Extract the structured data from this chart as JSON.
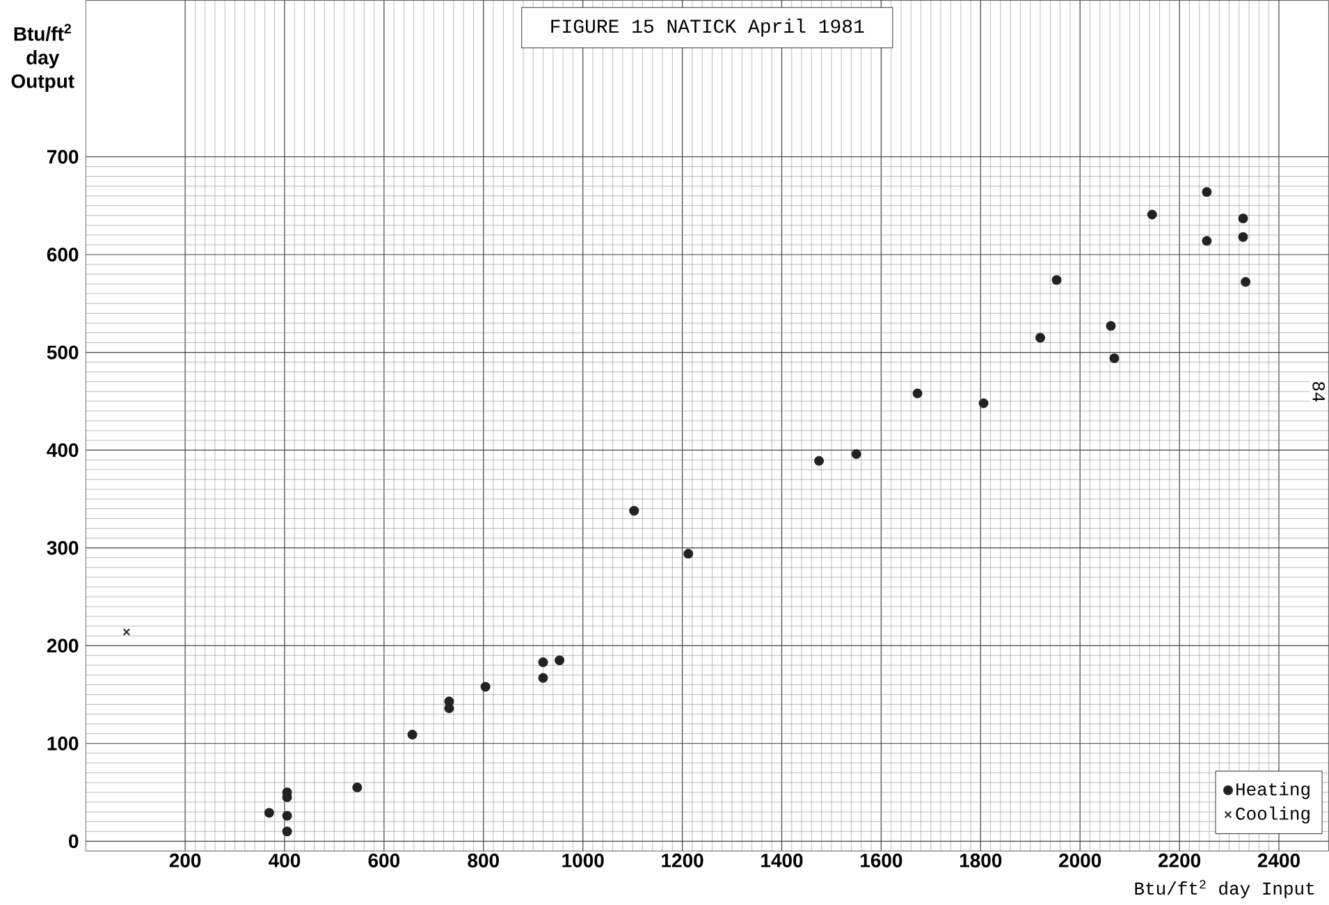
{
  "chart_data": {
    "type": "scatter",
    "title": "FIGURE 15  NATICK April 1981",
    "xlabel": "Btu/ft$^{2}$ day Input",
    "ylabel": "Btu/ft$^{2}$ day Output",
    "annotations": [
      "84"
    ],
    "xlim": [
      0,
      2500
    ],
    "ylim": [
      -10,
      860
    ],
    "xticks": [
      200,
      400,
      600,
      800,
      1000,
      1200,
      1400,
      1600,
      1800,
      2000,
      2200,
      2400
    ],
    "yticks": [
      0,
      100,
      200,
      300,
      400,
      500,
      600,
      700
    ],
    "grid": true,
    "legend": "bottom right",
    "series": [
      {
        "name": "Heating",
        "color": "#222222",
        "marker": "circle",
        "x": [
          369,
          405,
          405,
          405,
          405,
          546,
          657,
          731,
          731,
          804,
          920,
          920,
          953,
          1103,
          1212,
          1475,
          1550,
          1673,
          1806,
          1920,
          1953,
          2062,
          2069,
          2145,
          2255,
          2255,
          2328,
          2328,
          2333
        ],
        "values": [
          29,
          50,
          45,
          26,
          10,
          55,
          109,
          143,
          136,
          158,
          183,
          167,
          185,
          338,
          294,
          389,
          396,
          458,
          448,
          515,
          574,
          527,
          494,
          641,
          664,
          614,
          637,
          618,
          572
        ]
      },
      {
        "name": "Cooling",
        "color": "#222222",
        "marker": "cross",
        "x": [
          82
        ],
        "values": [
          214
        ]
      }
    ]
  }
}
